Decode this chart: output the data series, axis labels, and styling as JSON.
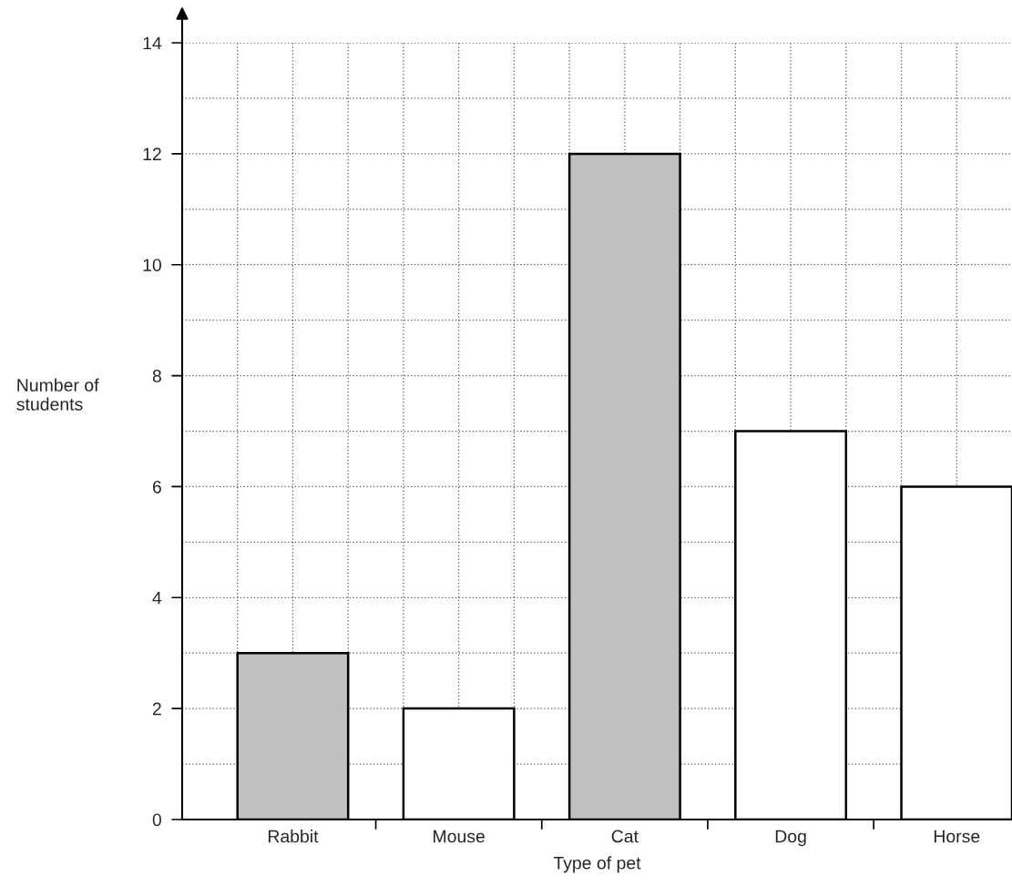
{
  "chart_data": {
    "type": "bar",
    "xlabel": "Type of pet",
    "ylabel": "Number of\nstudents",
    "categories": [
      "Rabbit",
      "Mouse",
      "Cat",
      "Dog",
      "Horse"
    ],
    "values": [
      3,
      2,
      12,
      7,
      6
    ],
    "colors": [
      "#c0c0c0",
      "#ffffff",
      "#c0c0c0",
      "#ffffff",
      "#ffffff"
    ],
    "ylim": [
      0,
      14
    ],
    "yticks": [
      0,
      {
        "value": 1,
        "label": null
      },
      2,
      {
        "value": 3,
        "label": null
      },
      4,
      {
        "value": 5,
        "label": null
      },
      6,
      {
        "value": 7,
        "label": null
      },
      8,
      {
        "value": 9,
        "label": null
      },
      10,
      {
        "value": 11,
        "label": null
      },
      12,
      {
        "value": 13,
        "label": null
      },
      14
    ],
    "grid": true
  }
}
